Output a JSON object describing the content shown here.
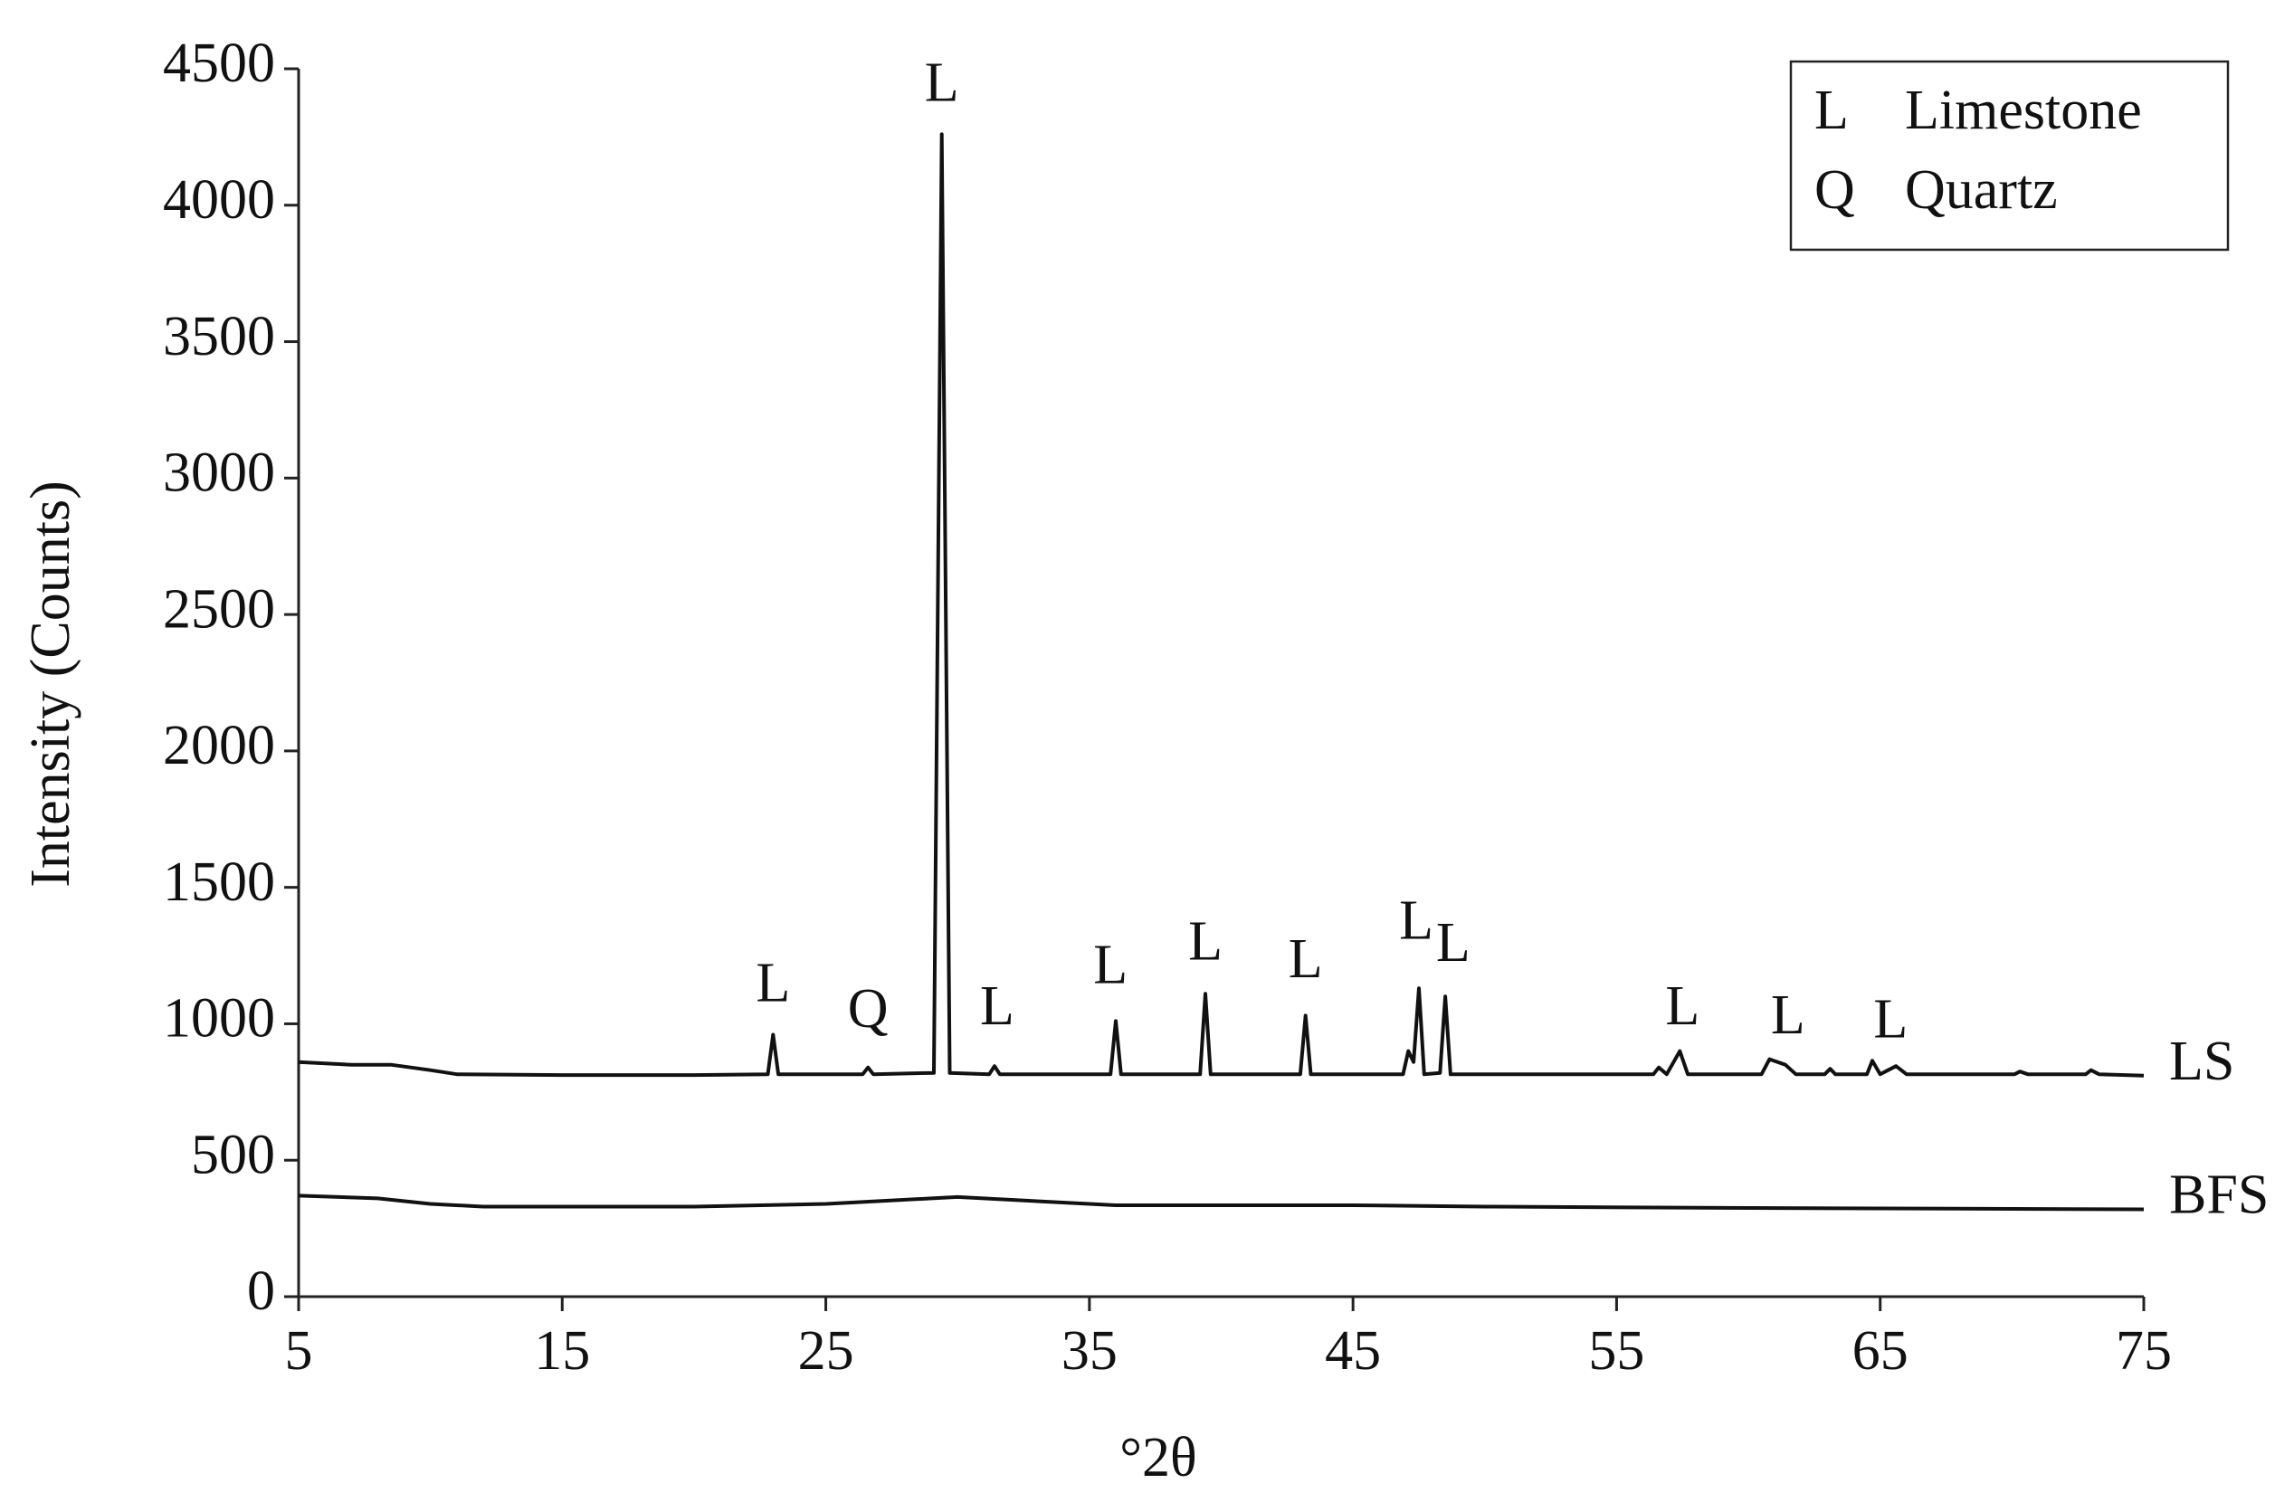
{
  "chart_data": {
    "type": "line",
    "x_label": "°2θ",
    "y_label": "Intensity (Counts)",
    "xlim": [
      5,
      75
    ],
    "xticks": [
      5,
      15,
      25,
      35,
      45,
      55,
      65,
      75
    ],
    "ylim": [
      0,
      4500
    ],
    "yticks": [
      0,
      500,
      1000,
      1500,
      2000,
      2500,
      3000,
      3500,
      4000,
      4500
    ],
    "series": [
      {
        "name": "LS",
        "color": "#111111",
        "x": [
          5,
          7,
          8.5,
          10,
          11,
          15,
          20,
          22.8,
          23.0,
          23.2,
          26.4,
          26.6,
          26.8,
          29.1,
          29.4,
          29.7,
          31.2,
          31.4,
          31.6,
          35.8,
          36.0,
          36.2,
          39.2,
          39.4,
          39.6,
          43.0,
          43.2,
          43.4,
          46.9,
          47.1,
          47.3,
          47.5,
          47.7,
          48.3,
          48.5,
          48.7,
          56.4,
          56.6,
          56.9,
          57.4,
          57.7,
          60.5,
          60.8,
          61.4,
          61.8,
          62.9,
          63.1,
          63.3,
          64.5,
          64.7,
          65.0,
          65.6,
          66.0,
          70.1,
          70.3,
          70.6,
          72.8,
          73.0,
          73.3,
          75
        ],
        "values": [
          860,
          850,
          850,
          830,
          815,
          812,
          812,
          815,
          960,
          815,
          815,
          840,
          815,
          820,
          4260,
          820,
          815,
          845,
          815,
          815,
          1010,
          815,
          815,
          1110,
          815,
          815,
          1030,
          815,
          815,
          900,
          860,
          1130,
          815,
          820,
          1100,
          815,
          815,
          840,
          815,
          900,
          815,
          815,
          870,
          850,
          815,
          815,
          835,
          815,
          815,
          865,
          815,
          845,
          815,
          815,
          825,
          815,
          815,
          830,
          815,
          810
        ]
      },
      {
        "name": "BFS",
        "color": "#111111",
        "x": [
          5,
          8,
          10,
          12,
          20,
          25,
          29,
          30,
          33,
          36,
          45,
          50,
          60,
          75
        ],
        "values": [
          370,
          360,
          340,
          330,
          330,
          340,
          360,
          365,
          350,
          335,
          335,
          330,
          325,
          320
        ]
      }
    ],
    "annotations": [
      {
        "text": "L",
        "x": 23.0,
        "y": 1130
      },
      {
        "text": "Q",
        "x": 26.6,
        "y": 1035
      },
      {
        "text": "L",
        "x": 29.4,
        "y": 4430
      },
      {
        "text": "L",
        "x": 31.5,
        "y": 1045
      },
      {
        "text": "L",
        "x": 35.8,
        "y": 1196
      },
      {
        "text": "L",
        "x": 39.4,
        "y": 1283
      },
      {
        "text": "L",
        "x": 43.2,
        "y": 1218
      },
      {
        "text": "L",
        "x": 47.4,
        "y": 1358
      },
      {
        "text": "L",
        "x": 48.8,
        "y": 1277
      },
      {
        "text": "L",
        "x": 57.5,
        "y": 1045
      },
      {
        "text": "L",
        "x": 61.5,
        "y": 1013
      },
      {
        "text": "L",
        "x": 65.4,
        "y": 997
      }
    ],
    "legend": [
      {
        "symbol": "L",
        "label": "Limestone"
      },
      {
        "symbol": "Q",
        "label": "Quartz"
      }
    ]
  }
}
